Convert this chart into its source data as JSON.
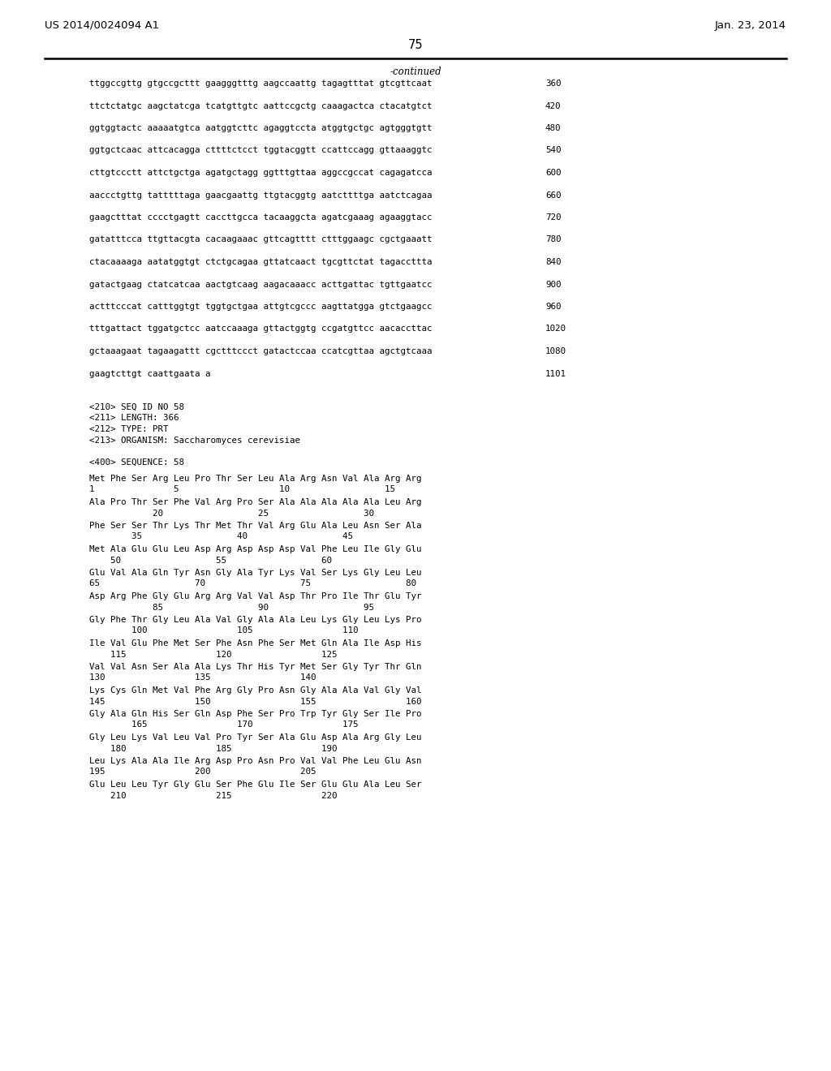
{
  "header_left": "US 2014/0024094 A1",
  "header_right": "Jan. 23, 2014",
  "page_number": "75",
  "continued_label": "-continued",
  "background_color": "#ffffff",
  "text_color": "#000000",
  "font_size_header": 9.5,
  "font_size_body": 7.8,
  "font_size_page": 10.5,
  "dna_lines": [
    [
      "ttggccgttg gtgccgcttt gaagggtttg aagccaattg tagagtttat gtcgttcaat",
      "360"
    ],
    [
      "ttctctatgc aagctatcga tcatgttgtc aattccgctg caaagactca ctacatgtct",
      "420"
    ],
    [
      "ggtggtactc aaaaatgtca aatggtcttc agaggtccta atggtgctgc agtgggtgtt",
      "480"
    ],
    [
      "ggtgctcaac attcacagga cttttctcct tggtacggtt ccattccagg gttaaaggtc",
      "540"
    ],
    [
      "cttgtccctt attctgctga agatgctagg ggtttgttaa aggccgccat cagagatcca",
      "600"
    ],
    [
      "aaccctgttg tatttttaga gaacgaattg ttgtacggtg aatcttttga aatctcagaa",
      "660"
    ],
    [
      "gaagctttat cccctgagtt caccttgcca tacaaggcta agatcgaaag agaaggtacc",
      "720"
    ],
    [
      "gatatttcca ttgttacgta cacaagaaac gttcagtttt ctttggaagc cgctgaaatt",
      "780"
    ],
    [
      "ctacaaaaga aatatggtgt ctctgcagaa gttatcaact tgcgttctat tagaccttta",
      "840"
    ],
    [
      "gatactgaag ctatcatcaa aactgtcaag aagacaaacc acttgattac tgttgaatcc",
      "900"
    ],
    [
      "actttcccat catttggtgt tggtgctgaa attgtcgccc aagttatgga gtctgaagcc",
      "960"
    ],
    [
      "tttgattact tggatgctcc aatccaaaga gttactggtg ccgatgttcc aacaccttac",
      "1020"
    ],
    [
      "gctaaagaat tagaagattt cgctttccct gatactccaa ccatcgttaa agctgtcaaa",
      "1080"
    ],
    [
      "gaagtcttgt caattgaata a",
      "1101"
    ]
  ],
  "meta_lines": [
    "<210> SEQ ID NO 58",
    "<211> LENGTH: 366",
    "<212> TYPE: PRT",
    "<213> ORGANISM: Saccharomyces cerevisiae"
  ],
  "sequence_header": "<400> SEQUENCE: 58",
  "protein_blocks": [
    {
      "seq": "Met Phe Ser Arg Leu Pro Thr Ser Leu Ala Arg Asn Val Ala Arg Arg",
      "num": "1               5                   10                  15"
    },
    {
      "seq": "Ala Pro Thr Ser Phe Val Arg Pro Ser Ala Ala Ala Ala Ala Leu Arg",
      "num": "            20                  25                  30"
    },
    {
      "seq": "Phe Ser Ser Thr Lys Thr Met Thr Val Arg Glu Ala Leu Asn Ser Ala",
      "num": "        35                  40                  45"
    },
    {
      "seq": "Met Ala Glu Glu Leu Asp Arg Asp Asp Asp Val Phe Leu Ile Gly Glu",
      "num": "    50                  55                  60"
    },
    {
      "seq": "Glu Val Ala Gln Tyr Asn Gly Ala Tyr Lys Val Ser Lys Gly Leu Leu",
      "num": "65                  70                  75                  80"
    },
    {
      "seq": "Asp Arg Phe Gly Glu Arg Arg Val Val Asp Thr Pro Ile Thr Glu Tyr",
      "num": "            85                  90                  95"
    },
    {
      "seq": "Gly Phe Thr Gly Leu Ala Val Gly Ala Ala Leu Lys Gly Leu Lys Pro",
      "num": "        100                 105                 110"
    },
    {
      "seq": "Ile Val Glu Phe Met Ser Phe Asn Phe Ser Met Gln Ala Ile Asp His",
      "num": "    115                 120                 125"
    },
    {
      "seq": "Val Val Asn Ser Ala Ala Lys Thr His Tyr Met Ser Gly Tyr Thr Gln",
      "num": "130                 135                 140"
    },
    {
      "seq": "Lys Cys Gln Met Val Phe Arg Gly Pro Asn Gly Ala Ala Val Gly Val",
      "num": "145                 150                 155                 160"
    },
    {
      "seq": "Gly Ala Gln His Ser Gln Asp Phe Ser Pro Trp Tyr Gly Ser Ile Pro",
      "num": "        165                 170                 175"
    },
    {
      "seq": "Gly Leu Lys Val Leu Val Pro Tyr Ser Ala Glu Asp Ala Arg Gly Leu",
      "num": "    180                 185                 190"
    },
    {
      "seq": "Leu Lys Ala Ala Ile Arg Asp Pro Asn Pro Val Val Phe Leu Glu Asn",
      "num": "195                 200                 205"
    },
    {
      "seq": "Glu Leu Leu Tyr Gly Glu Ser Phe Glu Ile Ser Glu Glu Ala Leu Ser",
      "num": "    210                 215                 220"
    }
  ]
}
